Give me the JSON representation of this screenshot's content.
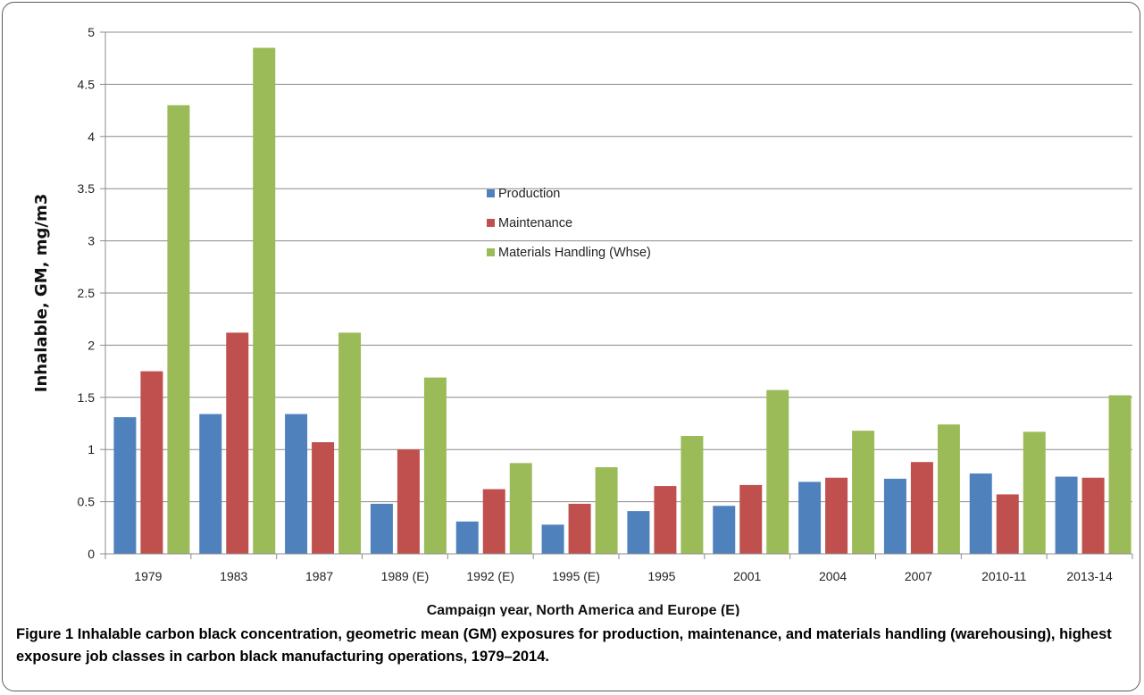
{
  "chart_data": {
    "type": "bar",
    "categories": [
      "1979",
      "1983",
      "1987",
      "1989 (E)",
      "1992 (E)",
      "1995 (E)",
      "1995",
      "2001",
      "2004",
      "2007",
      "2010-11",
      "2013-14"
    ],
    "series": [
      {
        "name": "Production",
        "color": "#4f81bd",
        "values": [
          1.31,
          1.34,
          1.34,
          0.48,
          0.31,
          0.28,
          0.41,
          0.46,
          0.69,
          0.72,
          0.77,
          0.74
        ]
      },
      {
        "name": "Maintenance",
        "color": "#c0504d",
        "values": [
          1.75,
          2.12,
          1.07,
          1.0,
          0.62,
          0.48,
          0.65,
          0.66,
          0.73,
          0.88,
          0.57,
          0.73
        ]
      },
      {
        "name": "Materials Handling (Whse)",
        "color": "#9bbb59",
        "values": [
          4.3,
          4.85,
          2.12,
          1.69,
          0.87,
          0.83,
          1.13,
          1.57,
          1.18,
          1.24,
          1.17,
          1.52
        ]
      }
    ],
    "ylabel": "Inhalable, GM, mg/m3",
    "xlabel": "Campaign year, North America and Europe (E)",
    "ylim": [
      0,
      5
    ],
    "yticks": [
      "0",
      "0.5",
      "1",
      "1.5",
      "2",
      "2.5",
      "3",
      "3.5",
      "4",
      "4.5",
      "5"
    ],
    "grid": true,
    "legend_position": "center"
  },
  "caption": {
    "label": "Figure 1",
    "text": "Inhalable carbon black concentration, geometric mean (GM) exposures for production, maintenance, and materials handling (warehousing), highest exposure job classes in carbon black manufacturing operations, 1979–2014."
  }
}
